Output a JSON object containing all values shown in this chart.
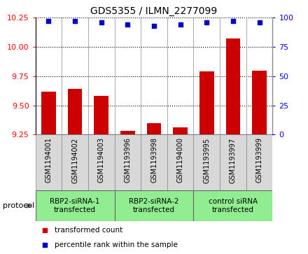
{
  "title": "GDS5355 / ILMN_2277099",
  "samples": [
    "GSM1194001",
    "GSM1194002",
    "GSM1194003",
    "GSM1193996",
    "GSM1193998",
    "GSM1194000",
    "GSM1193995",
    "GSM1193997",
    "GSM1193999"
  ],
  "bar_values": [
    9.62,
    9.64,
    9.58,
    9.28,
    9.35,
    9.31,
    9.79,
    10.07,
    9.8
  ],
  "percentile_values": [
    97,
    97,
    96,
    94,
    93,
    94,
    96,
    97,
    96
  ],
  "ylim_left": [
    9.25,
    10.25
  ],
  "ylim_right": [
    0,
    100
  ],
  "yticks_left": [
    9.25,
    9.5,
    9.75,
    10.0,
    10.25
  ],
  "yticks_right": [
    0,
    25,
    50,
    75,
    100
  ],
  "bar_color": "#cc0000",
  "dot_color": "#0000cc",
  "bar_width": 0.55,
  "groups": [
    {
      "label": "RBP2-siRNA-1\ntransfected",
      "indices": [
        0,
        1,
        2
      ],
      "color": "#90ee90"
    },
    {
      "label": "RBP2-siRNA-2\ntransfected",
      "indices": [
        3,
        4,
        5
      ],
      "color": "#90ee90"
    },
    {
      "label": "control siRNA\ntransfected",
      "indices": [
        6,
        7,
        8
      ],
      "color": "#90ee90"
    }
  ],
  "legend_items": [
    {
      "color": "#cc0000",
      "label": "transformed count"
    },
    {
      "color": "#0000cc",
      "label": "percentile rank within the sample"
    }
  ],
  "gray_bg": "#d8d8d8",
  "plot_bg": "#ffffff",
  "title_fontsize": 10,
  "tick_label_fontsize": 7,
  "group_label_fontsize": 7.5,
  "legend_fontsize": 7.5
}
